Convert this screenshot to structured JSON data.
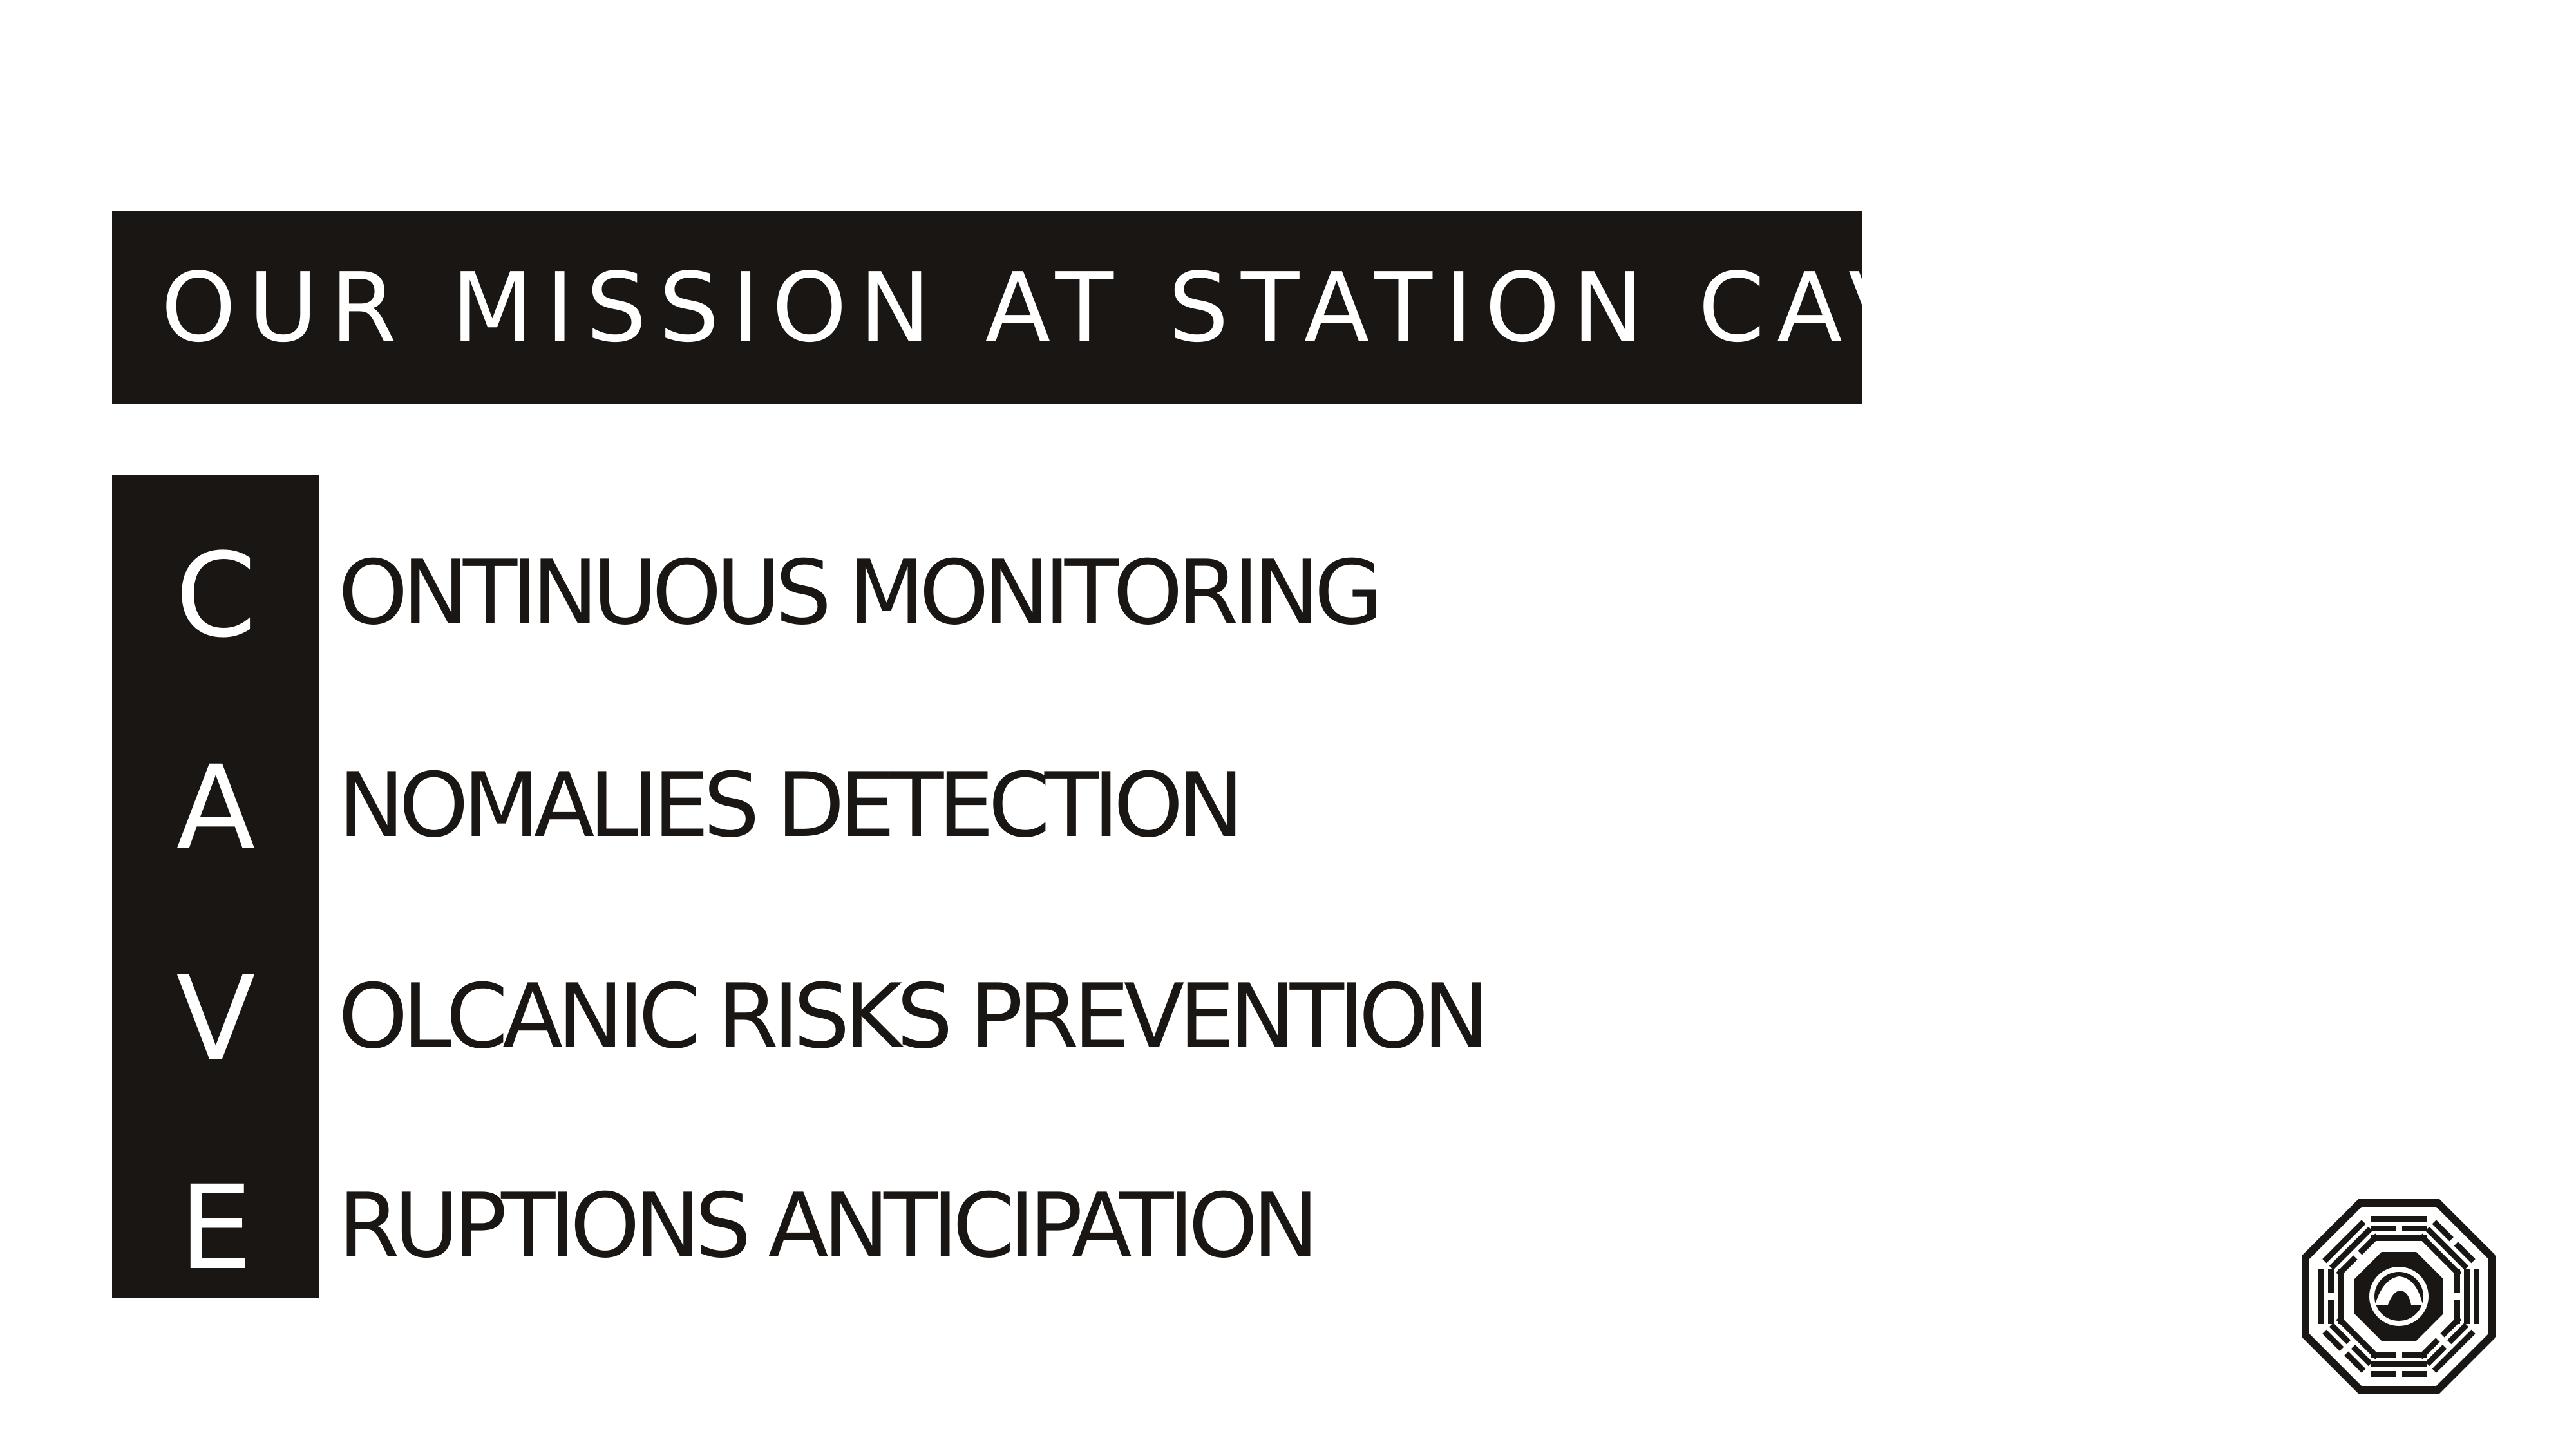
{
  "slide": {
    "title": "OUR MISSION AT STATION CAVE",
    "acronym": [
      {
        "letter": "C",
        "rest": "ONTINUOUS MONITORING"
      },
      {
        "letter": "A",
        "rest": "NOMALIES DETECTION"
      },
      {
        "letter": "V",
        "rest": "OLCANIC RISKS PREVENTION"
      },
      {
        "letter": "E",
        "rest": "RUPTIONS ANTICIPATION"
      }
    ]
  },
  "logo": {
    "icon": "octagon-trigram-logo-icon",
    "symbol": "cave-icon"
  },
  "colors": {
    "background": "#ffffff",
    "dark": "#1a1614",
    "text_on_dark": "#ffffff"
  }
}
